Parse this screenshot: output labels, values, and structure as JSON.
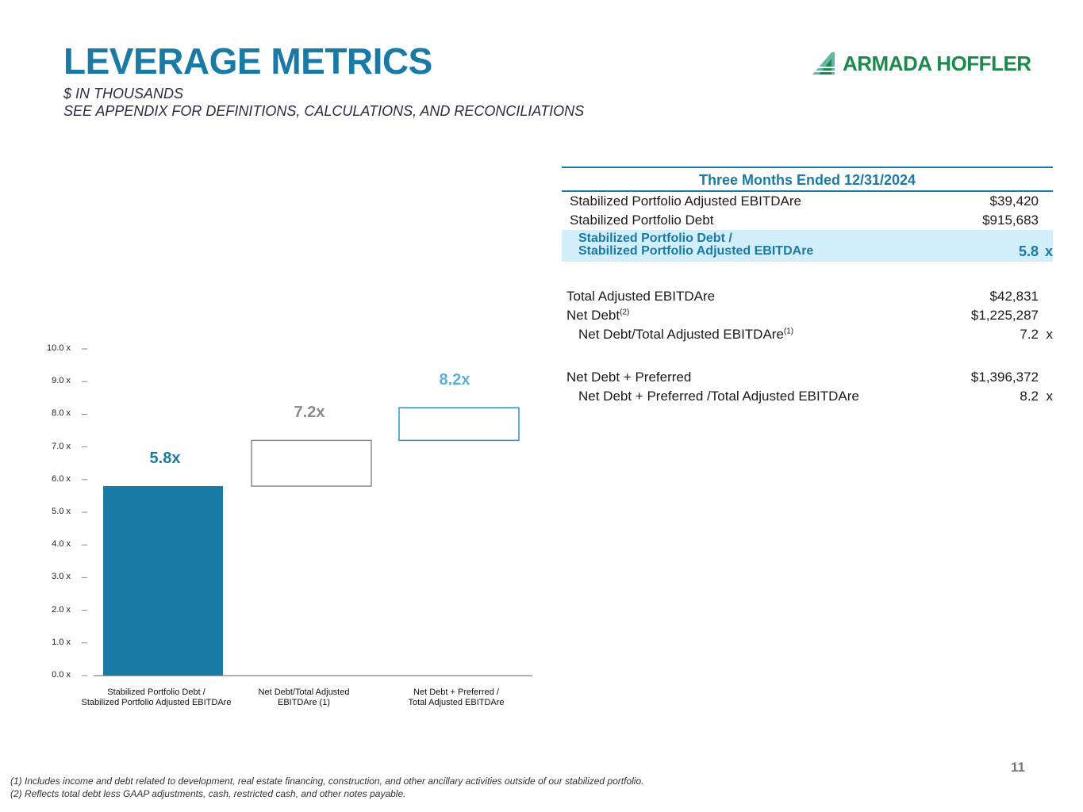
{
  "header": {
    "title": "LEVERAGE METRICS",
    "subtitle1": "$ IN THOUSANDS",
    "subtitle2": "SEE APPENDIX FOR DEFINITIONS, CALCULATIONS, AND RECONCILIATIONS",
    "logo_text": "ARMADA HOFFLER"
  },
  "table": {
    "header": "Three Months Ended 12/31/2024",
    "rows": [
      {
        "label": "Stabilized Portfolio Adjusted EBITDAre",
        "value": "$39,420"
      },
      {
        "label": "Stabilized Portfolio Debt",
        "value": "$915,683"
      },
      {
        "label1": "Stabilized Portfolio Debt /",
        "label2": "Stabilized Portfolio Adjusted EBITDAre",
        "value": "5.8",
        "unit": "x"
      },
      {
        "label": "Total Adjusted EBITDAre",
        "value": "$42,831"
      },
      {
        "label": "Net Debt",
        "sup": "(2)",
        "value": "$1,225,287"
      },
      {
        "label": "Net Debt/Total Adjusted EBITDAre",
        "sup": "(1)",
        "value": "7.2",
        "unit": "x"
      },
      {
        "label": "Net Debt + Preferred",
        "value": "$1,396,372"
      },
      {
        "label": "Net Debt + Preferred /Total Adjusted EBITDAre",
        "value": "8.2",
        "unit": "x"
      }
    ]
  },
  "chart_data": {
    "type": "bar",
    "style": "waterfall",
    "categories": [
      "Stabilized Portfolio Debt / Stabilized Portfolio Adjusted EBITDAre",
      "Net Debt/Total Adjusted EBITDAre (1)",
      "Net Debt + Preferred / Total Adjusted EBITDAre"
    ],
    "category_lines": [
      [
        "Stabilized Portfolio Debt /",
        "Stabilized Portfolio Adjusted EBITDAre"
      ],
      [
        "Net Debt/Total Adjusted",
        "EBITDAre (1)"
      ],
      [
        "Net Debt + Preferred /",
        "Total Adjusted EBITDAre"
      ]
    ],
    "values": [
      5.8,
      7.2,
      8.2
    ],
    "value_labels": [
      "5.8x",
      "7.2x",
      "8.2x"
    ],
    "ranges": [
      [
        0,
        5.8
      ],
      [
        5.8,
        7.2
      ],
      [
        7.2,
        8.2
      ]
    ],
    "ylim": [
      0,
      10
    ],
    "yticks": [
      "0.0 x",
      "1.0 x",
      "2.0 x",
      "3.0 x",
      "4.0 x",
      "5.0 x",
      "6.0 x",
      "7.0 x",
      "8.0 x",
      "9.0 x",
      "10.0 x"
    ],
    "colors": [
      "#1a7aa6",
      "#8a8a8a",
      "#2d93c8"
    ],
    "label_colors": [
      "#1a7aa6",
      "#8a8a8a",
      "#5bb0d8"
    ],
    "xlabel": "",
    "ylabel": ""
  },
  "footnotes": [
    "(1)   Includes income and debt related to development, real estate financing, construction, and other ancillary activities outside of our stabilized portfolio.",
    "(2)   Reflects total debt less GAAP adjustments, cash, restricted cash, and other notes payable."
  ],
  "page_number": "11"
}
